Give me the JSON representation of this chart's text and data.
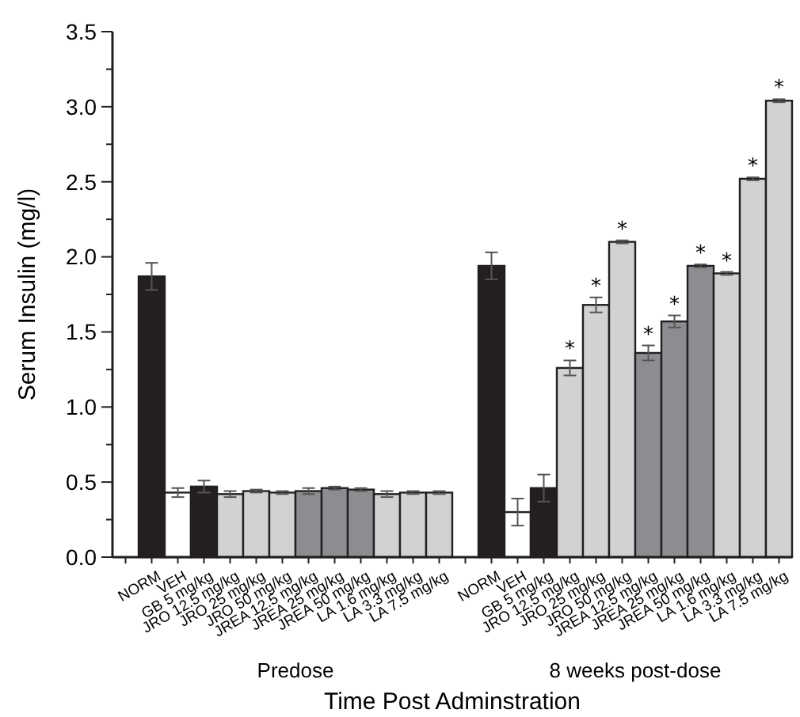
{
  "chart_data": {
    "type": "bar",
    "xlabel": "Time Post Adminstration",
    "ylabel": "Serum Insulin (mg/l)",
    "categories": [
      null,
      "NORM",
      "VEH",
      "GB 5 mg/kg",
      "JRO 12.5 mg/kg",
      "JRO 25 mg/kg",
      "JRO 50 mg/kg",
      "JREA 12.5 mg/kg",
      "JREA 25 mg/kg",
      "JREA 50 mg/kg",
      "LA 1.6 mg/kg",
      "LA 3.3 mg/kg",
      "LA 7.5 mg/kg",
      null,
      "NORM",
      "VEH",
      "GB 5 mg/kg",
      "JRO 12.5 mg/kg",
      "JRO 25 mg/kg",
      "JRO 50 mg/kg",
      "JREA 12.5 mg/kg",
      "JREA 25 mg/kg",
      "JREA 50 mg/kg",
      "LA 1.6 mg/kg",
      "LA 3.3 mg/kg",
      "LA 7.5 mg/kg"
    ],
    "values": [
      null,
      1.87,
      0.43,
      0.47,
      0.42,
      0.44,
      0.43,
      0.44,
      0.46,
      0.45,
      0.42,
      0.43,
      0.43,
      null,
      1.94,
      0.3,
      0.46,
      1.26,
      1.68,
      2.1,
      1.36,
      1.57,
      1.94,
      1.89,
      2.52,
      3.04
    ],
    "errors": [
      null,
      0.09,
      0.03,
      0.04,
      0.02,
      0.01,
      0.01,
      0.02,
      0.01,
      0.01,
      0.02,
      0.01,
      0.01,
      null,
      0.09,
      0.09,
      0.09,
      0.05,
      0.05,
      0.01,
      0.05,
      0.04,
      0.01,
      0.01,
      0.01,
      0.01
    ],
    "value_labels": [
      null,
      null,
      null,
      null,
      null,
      null,
      null,
      null,
      null,
      null,
      null,
      null,
      null,
      null,
      null,
      null,
      null,
      "*",
      "*",
      "*",
      "*",
      "*",
      "*",
      "*",
      "*",
      "*"
    ],
    "colors": [
      null,
      "#231f20",
      "#ffffff",
      "#231f20",
      "#d1d2d4",
      "#d1d2d4",
      "#d1d2d4",
      "#8b8d90",
      "#8b8d90",
      "#8b8d90",
      "#d1d2d4",
      "#d1d2d4",
      "#d1d2d4",
      null,
      "#231f20",
      "#ffffff",
      "#231f20",
      "#d1d2d4",
      "#d1d2d4",
      "#d1d2d4",
      "#8b8d90",
      "#8b8d90",
      "#8b8d90",
      "#d1d2d4",
      "#d1d2d4",
      "#d1d2d4"
    ],
    "annotations": [
      "Predose",
      "8 weeks post-dose"
    ],
    "ylim": [
      0,
      3.5
    ],
    "yticks": [
      {
        "value": 0,
        "label": "0.0"
      },
      {
        "value": 0.25,
        "label": null
      },
      {
        "value": 0.5,
        "label": "0.5"
      },
      {
        "value": 0.75,
        "label": null
      },
      {
        "value": 1,
        "label": "1.0"
      },
      {
        "value": 1.25,
        "label": null
      },
      {
        "value": 1.5,
        "label": "1.5"
      },
      {
        "value": 1.75,
        "label": null
      },
      {
        "value": 2,
        "label": "2.0"
      },
      {
        "value": 2.25,
        "label": null
      },
      {
        "value": 2.5,
        "label": "2.5"
      },
      {
        "value": 2.75,
        "label": null
      },
      {
        "value": 3,
        "label": "3.0"
      },
      {
        "value": 3.25,
        "label": null
      },
      {
        "value": 3.5,
        "label": "3.5"
      }
    ],
    "grid": false
  }
}
